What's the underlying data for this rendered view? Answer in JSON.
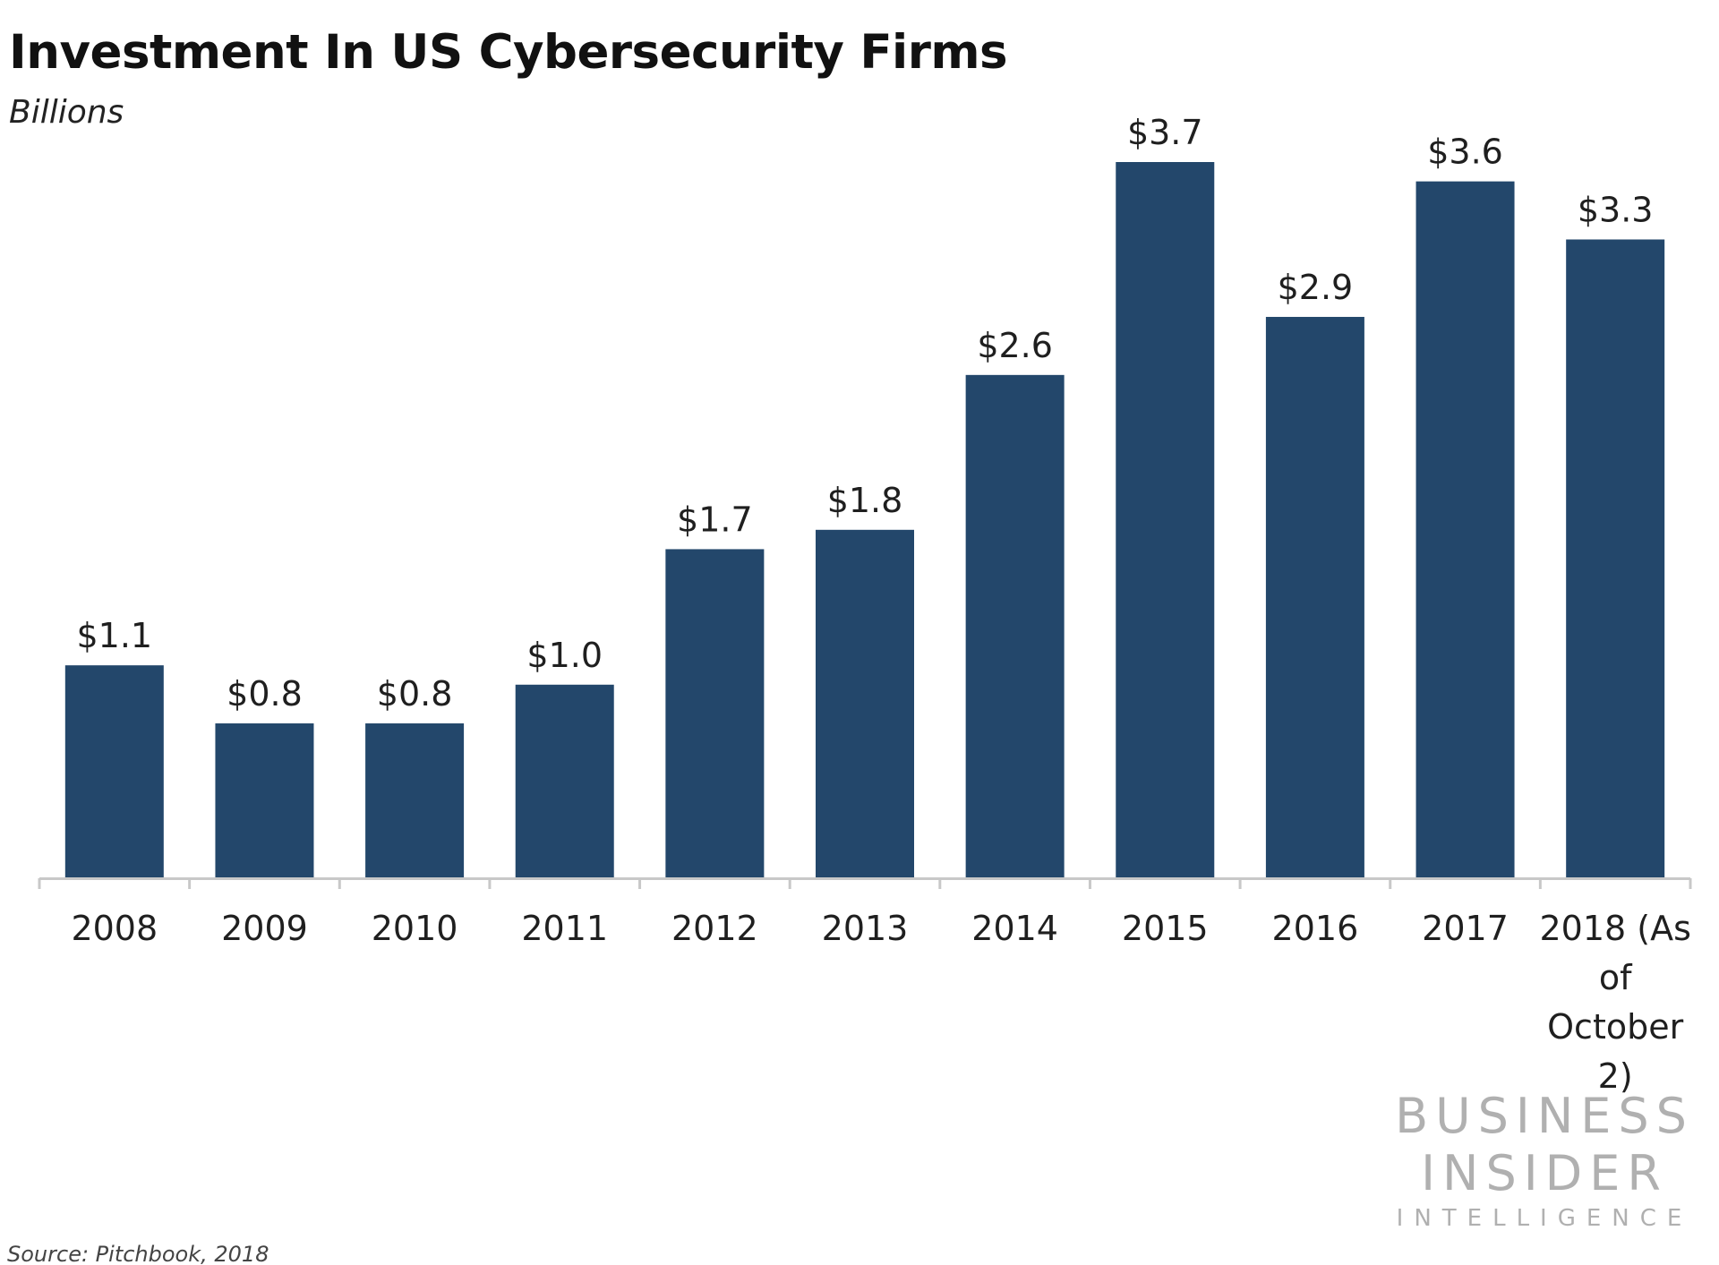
{
  "chart_data": {
    "type": "bar",
    "title": "Investment In US Cybersecurity Firms",
    "subtitle": "Billions",
    "categories": [
      "2008",
      "2009",
      "2010",
      "2011",
      "2012",
      "2013",
      "2014",
      "2015",
      "2016",
      "2017",
      "2018 (As of October 2)"
    ],
    "values": [
      1.1,
      0.8,
      0.8,
      1.0,
      1.7,
      1.8,
      2.6,
      3.7,
      2.9,
      3.6,
      3.3
    ],
    "data_labels": [
      "$1.1",
      "$0.8",
      "$0.8",
      "$1.0",
      "$1.7",
      "$1.8",
      "$2.6",
      "$3.7",
      "$2.9",
      "$3.6",
      "$3.3"
    ],
    "xlabel": "",
    "ylabel": "",
    "ylim": [
      0,
      3.7
    ],
    "grid": false,
    "legend": "none",
    "bar_color": "#23476b",
    "axis_color": "#c8c8c8",
    "source": "Source: Pitchbook, 2018"
  },
  "branding": {
    "line1": "BUSINESS",
    "line2": "INSIDER",
    "line3": "INTELLIGENCE"
  }
}
